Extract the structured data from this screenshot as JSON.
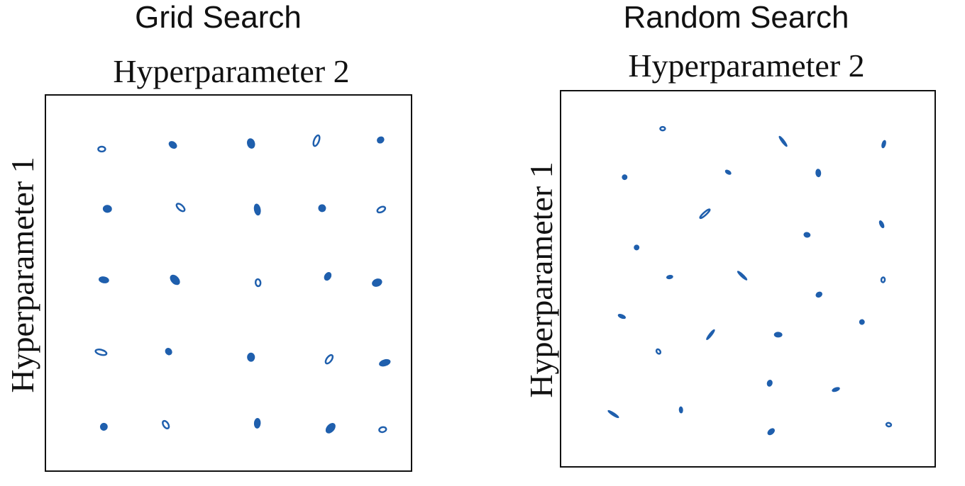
{
  "panels": [
    {
      "title": "Grid Search",
      "x_axis_label": "Hyperparameter 2",
      "y_axis_label": "Hyperparameter 1",
      "layout": "grid",
      "grid_size": [
        5,
        5
      ],
      "point_color": "#1f5fad"
    },
    {
      "title": "Random Search",
      "x_axis_label": "Hyperparameter 2",
      "y_axis_label": "Hyperparameter 1",
      "layout": "random",
      "point_count": 27,
      "point_color": "#1f5fad"
    }
  ]
}
